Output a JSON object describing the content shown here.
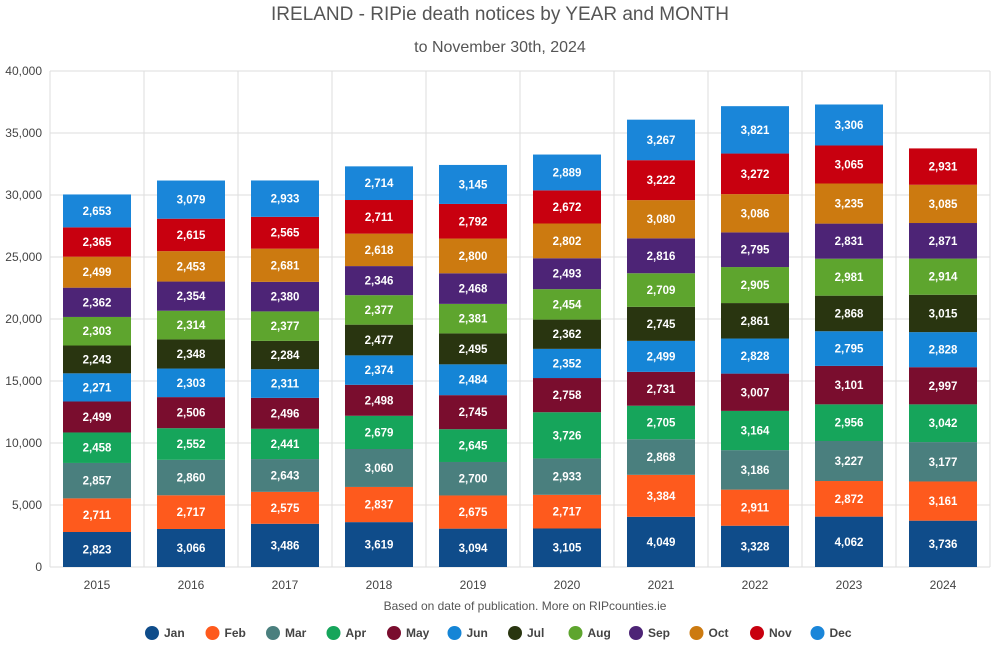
{
  "chart_data": {
    "type": "bar",
    "stacked": true,
    "title": "IRELAND - RIPie death notices by YEAR and MONTH",
    "subtitle": "to November 30th, 2024",
    "note": "Based on date of publication. More on RIPcounties.ie",
    "categories": [
      "2015",
      "2016",
      "2017",
      "2018",
      "2019",
      "2020",
      "2021",
      "2022",
      "2023",
      "2024"
    ],
    "ylim": [
      0,
      40000
    ],
    "yticks": [
      0,
      5000,
      10000,
      15000,
      20000,
      25000,
      30000,
      35000,
      40000
    ],
    "ytick_labels": [
      "0",
      "5,000",
      "10,000",
      "15,000",
      "20,000",
      "25,000",
      "30,000",
      "35,000",
      "40,000"
    ],
    "legend_position": "bottom",
    "series": [
      {
        "name": "Jan",
        "color": "#0f4c8a",
        "values": [
          2823,
          3066,
          3486,
          3619,
          3094,
          3105,
          4049,
          3328,
          4062,
          3736
        ],
        "labels": [
          "2,823",
          "3,066",
          "3,486",
          "3,619",
          "3,094",
          "3,105",
          "4,049",
          "3,328",
          "4,062",
          "3,736"
        ]
      },
      {
        "name": "Feb",
        "color": "#fe5a1d",
        "values": [
          2711,
          2717,
          2575,
          2837,
          2675,
          2717,
          3384,
          2911,
          2872,
          3161
        ],
        "labels": [
          "2,711",
          "2,717",
          "2,575",
          "2,837",
          "2,675",
          "2,717",
          "3,384",
          "2,911",
          "2,872",
          "3,161"
        ]
      },
      {
        "name": "Mar",
        "color": "#4a7f7e",
        "values": [
          2857,
          2860,
          2643,
          3060,
          2700,
          2933,
          2868,
          3186,
          3227,
          3177
        ],
        "labels": [
          "2,857",
          "2,860",
          "2,643",
          "3,060",
          "2,700",
          "2,933",
          "2,868",
          "3,186",
          "3,227",
          "3,177"
        ]
      },
      {
        "name": "Apr",
        "color": "#16a55b",
        "values": [
          2458,
          2552,
          2441,
          2679,
          2645,
          3726,
          2705,
          3164,
          2956,
          3042
        ],
        "labels": [
          "2,458",
          "2,552",
          "2,441",
          "2,679",
          "2,645",
          "3,726",
          "2,705",
          "3,164",
          "2,956",
          "3,042"
        ]
      },
      {
        "name": "May",
        "color": "#7a0d2e",
        "values": [
          2499,
          2506,
          2496,
          2498,
          2745,
          2758,
          2731,
          3007,
          3101,
          2997
        ],
        "labels": [
          "2,499",
          "2,506",
          "2,496",
          "2,498",
          "2,745",
          "2,758",
          "2,731",
          "3,007",
          "3,101",
          "2,997"
        ]
      },
      {
        "name": "Jun",
        "color": "#1585d6",
        "values": [
          2271,
          2303,
          2311,
          2374,
          2484,
          2352,
          2499,
          2828,
          2795,
          2828
        ],
        "labels": [
          "2,271",
          "2,303",
          "2,311",
          "2,374",
          "2,484",
          "2,352",
          "2,499",
          "2,828",
          "2,795",
          "2,828"
        ]
      },
      {
        "name": "Jul",
        "color": "#293510",
        "values": [
          2243,
          2348,
          2284,
          2477,
          2495,
          2362,
          2745,
          2861,
          2868,
          3015
        ],
        "labels": [
          "2,243",
          "2,348",
          "2,284",
          "2,477",
          "2,495",
          "2,362",
          "2,745",
          "2,861",
          "2,868",
          "3,015"
        ]
      },
      {
        "name": "Aug",
        "color": "#5ea52e",
        "values": [
          2303,
          2314,
          2377,
          2377,
          2381,
          2454,
          2709,
          2905,
          2981,
          2914
        ],
        "labels": [
          "2,303",
          "2,314",
          "2,377",
          "2,377",
          "2,381",
          "2,454",
          "2,709",
          "2,905",
          "2,981",
          "2,914"
        ]
      },
      {
        "name": "Sep",
        "color": "#4d2476",
        "values": [
          2362,
          2354,
          2380,
          2346,
          2468,
          2493,
          2816,
          2795,
          2831,
          2871
        ],
        "labels": [
          "2,362",
          "2,354",
          "2,380",
          "2,346",
          "2,468",
          "2,493",
          "2,816",
          "2,795",
          "2,831",
          "2,871"
        ]
      },
      {
        "name": "Oct",
        "color": "#cc7a10",
        "values": [
          2499,
          2453,
          2681,
          2618,
          2800,
          2802,
          3080,
          3086,
          3235,
          3085
        ],
        "labels": [
          "2,499",
          "2,453",
          "2,681",
          "2,618",
          "2,800",
          "2,802",
          "3,080",
          "3,086",
          "3,235",
          "3,085"
        ]
      },
      {
        "name": "Nov",
        "color": "#c8000f",
        "values": [
          2365,
          2615,
          2565,
          2711,
          2792,
          2672,
          3222,
          3272,
          3065,
          2931
        ],
        "labels": [
          "2,365",
          "2,615",
          "2,565",
          "2,711",
          "2,792",
          "2,672",
          "3,222",
          "3,272",
          "3,065",
          "2,931"
        ]
      },
      {
        "name": "Dec",
        "color": "#1a86d9",
        "values": [
          2653,
          3079,
          2933,
          2714,
          3145,
          2889,
          3267,
          3821,
          3306,
          null
        ],
        "labels": [
          "2,653",
          "3,079",
          "2,933",
          "2,714",
          "3,145",
          "2,889",
          "3,267",
          "3,821",
          "3,306",
          ""
        ]
      }
    ]
  }
}
